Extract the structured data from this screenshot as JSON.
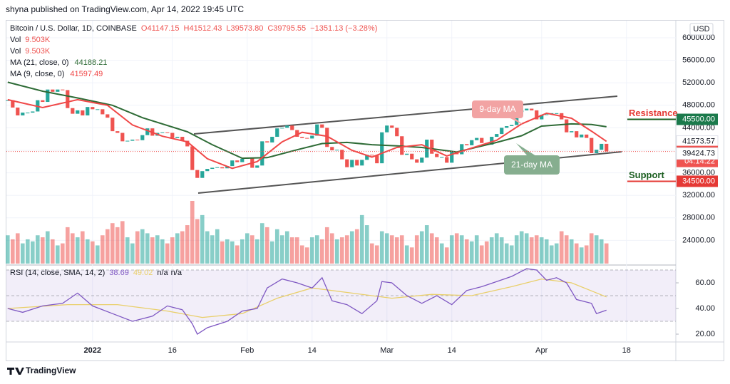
{
  "header": "shyna published on TradingView.com, Apr 14, 2022 19:45 UTC",
  "footer": "TradingView",
  "chart_data": {
    "type": "candlestick",
    "title": "Bitcoin / U.S. Dollar, 1D, COINBASE",
    "ohlc_text": [
      "O41147.15",
      "H41512.43",
      "L39573.80",
      "C39795.55",
      "−1351.13 (−3.28%)"
    ],
    "volume_legend": [
      {
        "label": "Vol",
        "value": "9.503K"
      },
      {
        "label": "Vol",
        "value": "9.503K"
      }
    ],
    "currency": "USD",
    "up_color": "#26a69a",
    "down_color": "#ef5350",
    "x": [
      -17,
      -16,
      -15,
      -14,
      -13,
      -12,
      -11,
      -10,
      -9,
      -8,
      -7,
      -6,
      -5,
      -4,
      -3,
      -2,
      -1,
      0,
      1,
      2,
      3,
      4,
      5,
      6,
      7,
      8,
      9,
      10,
      11,
      12,
      13,
      14,
      15,
      16,
      17,
      18,
      19,
      20,
      21,
      22,
      23,
      24,
      25,
      26,
      27,
      28,
      29,
      30,
      31,
      32,
      33,
      34,
      35,
      36,
      37,
      38,
      39,
      40,
      41,
      42,
      43,
      44,
      45,
      46,
      47,
      48,
      49,
      50,
      51,
      52,
      53,
      54,
      55,
      56,
      57,
      58,
      59,
      60,
      61,
      62,
      63,
      64,
      65,
      66,
      67,
      68,
      69,
      70,
      71,
      72,
      73,
      74,
      75,
      76,
      77,
      78,
      79,
      80,
      81,
      82,
      83,
      84,
      85,
      86,
      87,
      88,
      89,
      90,
      91,
      92,
      93,
      94,
      95,
      96,
      97,
      98,
      99,
      100,
      101,
      102,
      103
    ],
    "close": [
      48900,
      47600,
      46200,
      46700,
      46700,
      46900,
      48900,
      48600,
      50800,
      50400,
      50800,
      50700,
      47500,
      46500,
      47100,
      46200,
      47700,
      47300,
      47300,
      46400,
      45800,
      43400,
      43100,
      41600,
      41700,
      41900,
      41800,
      42700,
      43900,
      42600,
      43100,
      43200,
      43100,
      42200,
      42400,
      41700,
      40700,
      36500,
      35100,
      36300,
      36700,
      36900,
      37000,
      36800,
      37200,
      38200,
      37900,
      38500,
      38700,
      36900,
      37300,
      41600,
      41400,
      42400,
      43900,
      44000,
      44400,
      43600,
      42400,
      42200,
      42100,
      42600,
      44600,
      44000,
      40600,
      40000,
      40100,
      38400,
      37000,
      38300,
      37300,
      38300,
      39200,
      39100,
      37700,
      43200,
      44400,
      44000,
      42500,
      39200,
      39400,
      38400,
      37800,
      38700,
      41900,
      39400,
      38800,
      38800,
      37800,
      39700,
      39300,
      41100,
      40900,
      41800,
      42200,
      41300,
      41000,
      42400,
      42900,
      44000,
      44300,
      44500,
      46800,
      47100,
      47400,
      47100,
      45500,
      46300,
      46400,
      46600,
      46600,
      45500,
      43200,
      43400,
      42300,
      42800,
      42200,
      39500,
      40100,
      41150,
      39795.55
    ],
    "volume": {
      "values": [
        14,
        12,
        15,
        10,
        12,
        11,
        14,
        13,
        16,
        12,
        9,
        10,
        18,
        15,
        13,
        16,
        12,
        11,
        9,
        14,
        17,
        20,
        18,
        21,
        13,
        10,
        16,
        17,
        15,
        13,
        14,
        12,
        10,
        13,
        15,
        16,
        19,
        31,
        22,
        24,
        16,
        14,
        17,
        11,
        12,
        11,
        9,
        12,
        15,
        14,
        12,
        20,
        18,
        11,
        17,
        14,
        16,
        13,
        13,
        9,
        8,
        13,
        14,
        12,
        18,
        15,
        12,
        13,
        14,
        16,
        17,
        24,
        19,
        10,
        9,
        16,
        15,
        14,
        13,
        14,
        9,
        8,
        14,
        16,
        19,
        15,
        13,
        10,
        8,
        14,
        15,
        14,
        12,
        11,
        14,
        9,
        11,
        13,
        15,
        13,
        10,
        9,
        14,
        16,
        15,
        13,
        14,
        13,
        12,
        9,
        10,
        16,
        14,
        12,
        10,
        8,
        9,
        15,
        14,
        12,
        10
      ]
    },
    "ma": [
      {
        "name": "MA (21, close, 0)",
        "last": "44188.21",
        "color": "#2e6b36",
        "x": [
          -17,
          -10,
          -3,
          4,
          10,
          19,
          24,
          30,
          35,
          41,
          46,
          51,
          56,
          61,
          66,
          73,
          81,
          86,
          90,
          96,
          100,
          103
        ],
        "values": [
          52100,
          50500,
          49300,
          48000,
          45800,
          43300,
          41000,
          38600,
          38700,
          40100,
          41200,
          41400,
          41000,
          40800,
          40500,
          39700,
          41400,
          42600,
          44300,
          44700,
          44600,
          44188.21
        ]
      },
      {
        "name": "MA (9, close, 0)",
        "last": "41597.49",
        "color": "#f04848",
        "x": [
          -17,
          -10,
          -3,
          3,
          8,
          14,
          19,
          23,
          28,
          33,
          38,
          42,
          47,
          52,
          56,
          61,
          66,
          71,
          76,
          81,
          86,
          91,
          96,
          100,
          103
        ],
        "values": [
          49000,
          47600,
          49000,
          48000,
          44500,
          42500,
          41500,
          38500,
          36800,
          38000,
          41500,
          43200,
          42500,
          40000,
          38800,
          40500,
          41000,
          39000,
          40400,
          41800,
          44700,
          46600,
          45700,
          43400,
          41597.49
        ]
      }
    ],
    "xlim": [
      -17.4,
      116.9
    ],
    "xticks": [
      {
        "value": 0,
        "label": "2022"
      },
      16,
      {
        "value": 31,
        "label": "Feb"
      },
      {
        "value": 44,
        "label": "14"
      },
      {
        "value": 59,
        "label": "Mar"
      },
      {
        "value": 72,
        "label": "14"
      },
      {
        "value": 90,
        "label": "Apr"
      },
      {
        "value": 107,
        "label": "18"
      }
    ],
    "ylim": [
      19620,
      62910
    ],
    "yticks": [
      {
        "value": 24000,
        "label": "24000.00"
      },
      {
        "value": 28000,
        "label": "28000.00"
      },
      {
        "value": 32000,
        "label": "32000.00"
      },
      {
        "value": 36000,
        "label": "36000.00"
      },
      {
        "value": 40000,
        "label": "40000.00"
      },
      {
        "value": 44000,
        "label": "44000.00"
      },
      {
        "value": 48000,
        "label": "48000.00"
      },
      {
        "value": 52000,
        "label": "52000.00"
      },
      {
        "value": 56000,
        "label": "56000.00"
      },
      {
        "value": 60000,
        "label": "60000.00"
      }
    ],
    "price_tags": [
      {
        "value": 45500,
        "label": "45500.00",
        "color": "#1b7a4c"
      },
      {
        "value": 41573.57,
        "label": "41573.57"
      },
      {
        "value": 39795.55,
        "label": "39795.55",
        "color": "#ef5350",
        "countdown": "04:14:22"
      },
      {
        "value": 39424.73,
        "label": "39424.73"
      },
      {
        "value": 34500,
        "label": "34500.00",
        "color": "#e53935"
      }
    ],
    "levels": [
      {
        "name": "Resistance",
        "value": 45500,
        "color": "#1b5e20",
        "text_color": "#e53935"
      },
      {
        "name": "Support",
        "value": 34500,
        "color": "#e53935",
        "text_color": "#1b5e20"
      }
    ],
    "annotations": [
      "9-day MA",
      "21-day MA"
    ],
    "rsi": {
      "title": "RSI (14, close, SMA, 14, 2)",
      "value_text": "38.69",
      "sma_text": "49.02",
      "na": [
        "n/a",
        "n/a"
      ],
      "color": "#7e57c2",
      "x": [
        -17,
        -14,
        -10,
        -6,
        -3,
        0,
        4,
        8,
        12,
        15,
        18,
        20,
        21,
        23,
        27,
        30,
        33,
        35,
        38,
        41,
        44,
        46,
        48,
        51,
        54,
        57,
        58,
        60,
        63,
        66,
        69,
        72,
        75,
        78,
        81,
        84,
        87,
        89,
        91,
        93,
        95,
        97,
        100,
        101,
        103
      ],
      "values": [
        40,
        37,
        42,
        44,
        52,
        42,
        36,
        30,
        34,
        42,
        39,
        28,
        20,
        25,
        30,
        38,
        40,
        56,
        63,
        60,
        56,
        64,
        46,
        43,
        36,
        46,
        61,
        60,
        50,
        44,
        50,
        43,
        54,
        57,
        61,
        65,
        71,
        70,
        62,
        64,
        60,
        47,
        44,
        36,
        38.69
      ],
      "sma": {
        "color": "#e9cf6a",
        "x": [
          -17,
          -5,
          5,
          15,
          22,
          30,
          37,
          44,
          52,
          60,
          68,
          76,
          84,
          90,
          96,
          103
        ],
        "values": [
          40,
          43,
          43,
          38,
          33,
          36,
          48,
          56,
          52,
          48,
          51,
          50,
          57,
          63,
          60,
          49.02
        ]
      },
      "ylim": [
        13.9,
        73.9
      ],
      "yticks": [
        {
          "value": 20,
          "label": "20.00"
        },
        {
          "value": 40,
          "label": "40.00"
        },
        {
          "value": 60,
          "label": "60.00"
        }
      ],
      "band_lines": [
        30,
        50,
        70
      ]
    }
  }
}
